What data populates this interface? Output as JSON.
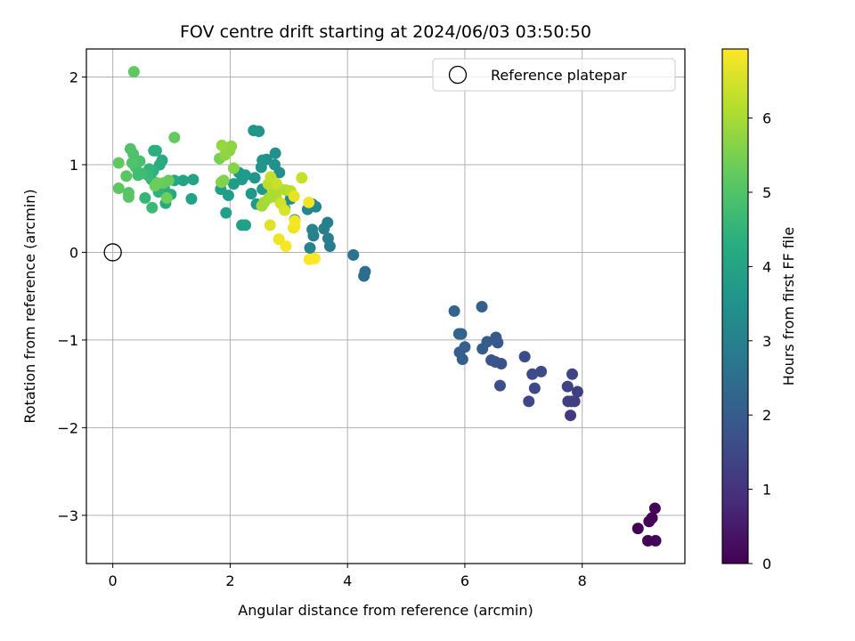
{
  "chart_data": {
    "type": "scatter",
    "title": "FOV centre drift starting at 2024/06/03 03:50:50",
    "xlabel": "Angular distance from reference (arcmin)",
    "ylabel": "Rotation from reference (arcmin)",
    "xlim": [
      -0.45,
      9.75
    ],
    "ylim": [
      -3.55,
      2.32
    ],
    "xticks": [
      0,
      2,
      4,
      6,
      8
    ],
    "yticks": [
      2,
      1,
      0,
      -1,
      -2,
      -3
    ],
    "xtick_labels": [
      "0",
      "2",
      "4",
      "6",
      "8"
    ],
    "ytick_labels": [
      "2",
      "1",
      "0",
      "−1",
      "−2",
      "−3"
    ],
    "grid": true,
    "colormap": "viridis",
    "colorbar": {
      "label": "Hours from first FF file",
      "min": 0,
      "max": 6.93,
      "ticks": [
        0,
        1,
        2,
        3,
        4,
        5,
        6
      ],
      "tick_labels": [
        "0",
        "1",
        "2",
        "3",
        "4",
        "5",
        "6"
      ]
    },
    "legend": {
      "placement": "top-right",
      "entries": [
        {
          "label": "Reference platepar",
          "marker": "open-circle"
        }
      ]
    },
    "reference_point": {
      "x": 0,
      "y": 0
    },
    "series": [
      {
        "points": [
          [
            8.95,
            -3.15,
            0.05
          ],
          [
            9.12,
            -3.29,
            0.05
          ],
          [
            9.25,
            -3.29,
            0.06
          ],
          [
            9.24,
            -2.92,
            0.07
          ],
          [
            9.14,
            -3.07,
            0.06
          ],
          [
            9.19,
            -3.03,
            0.07
          ],
          [
            7.8,
            -1.86,
            1.2
          ],
          [
            7.82,
            -1.7,
            1.25
          ],
          [
            7.87,
            -1.7,
            1.3
          ],
          [
            7.92,
            -1.59,
            1.3
          ],
          [
            7.75,
            -1.53,
            1.35
          ],
          [
            7.83,
            -1.39,
            1.4
          ],
          [
            7.76,
            -1.7,
            1.3
          ],
          [
            7.09,
            -1.7,
            1.5
          ],
          [
            7.19,
            -1.55,
            1.55
          ],
          [
            7.15,
            -1.39,
            1.6
          ],
          [
            7.3,
            -1.36,
            1.6
          ],
          [
            7.02,
            -1.19,
            1.65
          ],
          [
            6.6,
            -1.52,
            1.7
          ],
          [
            6.62,
            -1.27,
            1.75
          ],
          [
            6.52,
            -1.25,
            1.8
          ],
          [
            6.45,
            -1.23,
            1.85
          ],
          [
            6.56,
            -1.03,
            1.9
          ],
          [
            6.53,
            -0.97,
            1.95
          ],
          [
            6.38,
            -1.02,
            2.0
          ],
          [
            6.3,
            -1.1,
            2.0
          ],
          [
            6.29,
            -0.62,
            2.1
          ],
          [
            5.96,
            -1.22,
            2.05
          ],
          [
            5.91,
            -1.14,
            2.1
          ],
          [
            6.0,
            -1.08,
            2.1
          ],
          [
            5.94,
            -0.93,
            2.15
          ],
          [
            5.9,
            -0.93,
            2.2
          ],
          [
            5.82,
            -0.67,
            2.2
          ],
          [
            4.3,
            -0.22,
            2.5
          ],
          [
            4.28,
            -0.27,
            2.45
          ],
          [
            4.1,
            -0.03,
            2.6
          ],
          [
            3.7,
            0.07,
            2.9
          ],
          [
            3.67,
            0.16,
            2.95
          ],
          [
            3.66,
            0.34,
            3.0
          ],
          [
            3.6,
            0.27,
            3.0
          ],
          [
            3.42,
            0.19,
            3.05
          ],
          [
            3.4,
            0.26,
            3.1
          ],
          [
            3.36,
            0.05,
            3.1
          ],
          [
            3.32,
            0.49,
            3.15
          ],
          [
            3.4,
            0.55,
            3.15
          ],
          [
            3.46,
            0.52,
            3.2
          ],
          [
            3.1,
            0.37,
            3.3
          ],
          [
            3.03,
            0.61,
            3.35
          ],
          [
            2.93,
            0.5,
            3.35
          ],
          [
            2.84,
            0.91,
            3.4
          ],
          [
            2.77,
            1.13,
            3.5
          ],
          [
            2.76,
            1.0,
            3.5
          ],
          [
            2.62,
            1.06,
            3.55
          ],
          [
            2.55,
            1.05,
            3.6
          ],
          [
            2.53,
            0.97,
            3.6
          ],
          [
            2.49,
            1.38,
            3.6
          ],
          [
            2.4,
            1.39,
            3.65
          ],
          [
            2.42,
            0.85,
            3.65
          ],
          [
            2.36,
            0.67,
            3.7
          ],
          [
            2.45,
            0.55,
            3.7
          ],
          [
            2.55,
            0.72,
            3.7
          ],
          [
            2.26,
            0.88,
            3.75
          ],
          [
            2.2,
            0.83,
            3.75
          ],
          [
            2.15,
            0.91,
            3.8
          ],
          [
            2.06,
            0.78,
            3.8
          ],
          [
            1.97,
            0.65,
            3.85
          ],
          [
            1.84,
            0.72,
            3.85
          ],
          [
            1.93,
            0.45,
            3.9
          ],
          [
            2.26,
            0.31,
            3.9
          ],
          [
            2.2,
            0.31,
            3.95
          ],
          [
            1.37,
            0.83,
            4.0
          ],
          [
            1.34,
            0.61,
            4.0
          ],
          [
            1.2,
            0.82,
            4.05
          ],
          [
            1.05,
            0.82,
            4.1
          ],
          [
            0.99,
            0.66,
            4.15
          ],
          [
            0.9,
            0.56,
            4.2
          ],
          [
            0.84,
            1.05,
            4.2
          ],
          [
            0.8,
            1.0,
            4.25
          ],
          [
            0.74,
            1.16,
            4.3
          ],
          [
            0.7,
            1.16,
            4.3
          ],
          [
            0.88,
            0.72,
            4.35
          ],
          [
            0.78,
            0.69,
            4.4
          ],
          [
            0.69,
            0.93,
            4.45
          ],
          [
            0.66,
            0.83,
            4.5
          ],
          [
            0.62,
            0.95,
            4.55
          ],
          [
            0.55,
            0.62,
            4.6
          ],
          [
            0.6,
            0.88,
            4.65
          ],
          [
            0.67,
            0.51,
            4.7
          ],
          [
            0.5,
            0.9,
            4.75
          ],
          [
            0.43,
            0.88,
            4.8
          ],
          [
            0.39,
            0.97,
            4.85
          ],
          [
            0.46,
            1.04,
            4.9
          ],
          [
            0.35,
            1.12,
            4.95
          ],
          [
            0.3,
            1.18,
            5.0
          ],
          [
            0.33,
            1.02,
            5.0
          ],
          [
            0.27,
            0.68,
            5.05
          ],
          [
            0.27,
            0.63,
            5.1
          ],
          [
            0.23,
            0.87,
            5.1
          ],
          [
            0.1,
            0.73,
            5.15
          ],
          [
            0.1,
            1.02,
            5.2
          ],
          [
            0.36,
            2.06,
            5.2
          ],
          [
            1.05,
            1.31,
            5.25
          ],
          [
            0.95,
            0.82,
            5.3
          ],
          [
            0.86,
            0.79,
            5.3
          ],
          [
            0.76,
            0.79,
            5.35
          ],
          [
            0.72,
            0.76,
            5.35
          ],
          [
            0.92,
            0.62,
            5.4
          ],
          [
            1.82,
            1.07,
            5.5
          ],
          [
            1.89,
            0.82,
            5.55
          ],
          [
            1.85,
            0.8,
            5.6
          ],
          [
            2.06,
            0.96,
            5.65
          ],
          [
            1.99,
            1.16,
            5.7
          ],
          [
            2.02,
            1.21,
            5.75
          ],
          [
            1.91,
            1.11,
            5.75
          ],
          [
            1.86,
            1.22,
            5.8
          ],
          [
            2.58,
            0.57,
            5.9
          ],
          [
            2.54,
            0.53,
            5.95
          ],
          [
            2.66,
            0.62,
            6.0
          ],
          [
            2.78,
            0.63,
            6.05
          ],
          [
            2.85,
            0.72,
            6.1
          ],
          [
            2.71,
            0.74,
            6.1
          ],
          [
            2.95,
            0.71,
            6.15
          ],
          [
            3.03,
            0.7,
            6.2
          ],
          [
            2.65,
            0.78,
            6.2
          ],
          [
            2.69,
            0.86,
            6.3
          ],
          [
            2.79,
            0.78,
            6.35
          ],
          [
            3.22,
            0.85,
            6.35
          ],
          [
            2.86,
            0.56,
            6.45
          ],
          [
            2.93,
            0.48,
            6.55
          ],
          [
            2.68,
            0.31,
            6.6
          ],
          [
            3.08,
            0.28,
            6.7
          ],
          [
            2.83,
            0.15,
            6.75
          ],
          [
            2.95,
            0.07,
            6.85
          ],
          [
            3.1,
            0.3,
            6.8
          ],
          [
            3.09,
            0.64,
            6.7
          ],
          [
            3.34,
            0.57,
            6.8
          ],
          [
            3.44,
            -0.07,
            6.9
          ],
          [
            3.35,
            -0.08,
            6.9
          ],
          [
            3.1,
            0.36,
            6.85
          ]
        ]
      }
    ]
  }
}
